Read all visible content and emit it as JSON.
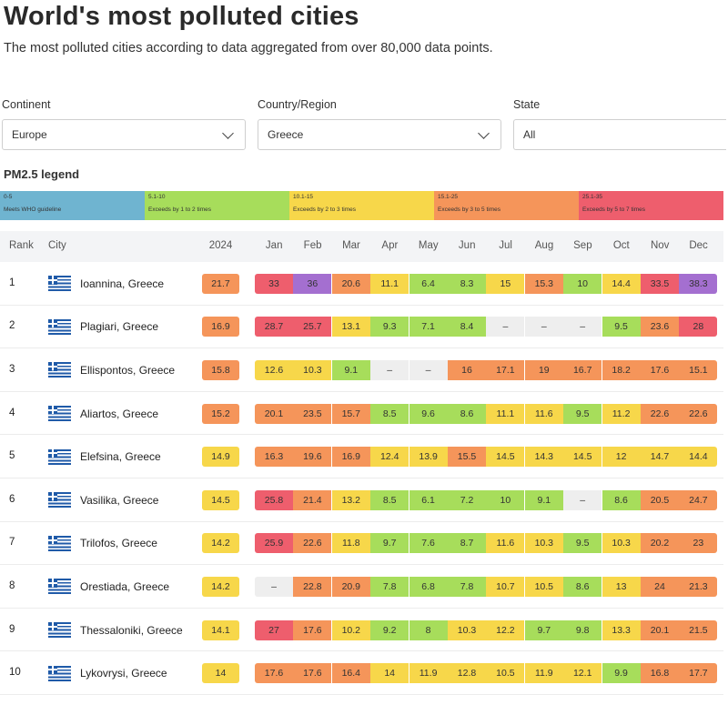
{
  "page": {
    "title": "World's most polluted cities",
    "subtitle": "The most polluted cities according to data aggregated from over 80,000 data points."
  },
  "filters": [
    {
      "label": "Continent",
      "value": "Europe"
    },
    {
      "label": "Country/Region",
      "value": "Greece"
    },
    {
      "label": "State",
      "value": "All"
    }
  ],
  "legend": {
    "title": "PM2.5 legend",
    "items": [
      {
        "range": "0-5",
        "desc": "Meets WHO guideline",
        "color": "#6fb4d0"
      },
      {
        "range": "5.1-10",
        "desc": "Exceeds by 1 to 2 times",
        "color": "#a7dd5b"
      },
      {
        "range": "10.1-15",
        "desc": "Exceeds by 2 to 3 times",
        "color": "#f7d74a"
      },
      {
        "range": "15.1-25",
        "desc": "Exceeds by 3 to 5 times",
        "color": "#f5955a"
      },
      {
        "range": "25.1-35",
        "desc": "Exceeds by 5 to 7 times",
        "color": "#ee5e6d"
      }
    ]
  },
  "colors": {
    "l1": "#6fb4d0",
    "l2": "#a7dd5b",
    "l3": "#f7d74a",
    "l4": "#f5955a",
    "l5": "#ee5e6d",
    "l6": "#a46fd0",
    "none": "#eeeeee"
  },
  "table": {
    "headers": {
      "rank": "Rank",
      "city": "City",
      "year": "2024"
    },
    "months": [
      "Jan",
      "Feb",
      "Mar",
      "Apr",
      "May",
      "Jun",
      "Jul",
      "Aug",
      "Sep",
      "Oct",
      "Nov",
      "Dec"
    ],
    "rows": [
      {
        "rank": "1",
        "city": "Ioannina, Greece",
        "year": "21.7",
        "months": [
          "33",
          "36",
          "20.6",
          "11.1",
          "6.4",
          "8.3",
          "15",
          "15.3",
          "10",
          "14.4",
          "33.5",
          "38.3"
        ]
      },
      {
        "rank": "2",
        "city": "Plagiari, Greece",
        "year": "16.9",
        "months": [
          "28.7",
          "25.7",
          "13.1",
          "9.3",
          "7.1",
          "8.4",
          "–",
          "–",
          "–",
          "9.5",
          "23.6",
          "28"
        ]
      },
      {
        "rank": "3",
        "city": "Ellispontos, Greece",
        "year": "15.8",
        "months": [
          "12.6",
          "10.3",
          "9.1",
          "–",
          "–",
          "16",
          "17.1",
          "19",
          "16.7",
          "18.2",
          "17.6",
          "15.1"
        ]
      },
      {
        "rank": "4",
        "city": "Aliartos, Greece",
        "year": "15.2",
        "months": [
          "20.1",
          "23.5",
          "15.7",
          "8.5",
          "9.6",
          "8.6",
          "11.1",
          "11.6",
          "9.5",
          "11.2",
          "22.6",
          "22.6"
        ]
      },
      {
        "rank": "5",
        "city": "Elefsina, Greece",
        "year": "14.9",
        "months": [
          "16.3",
          "19.6",
          "16.9",
          "12.4",
          "13.9",
          "15.5",
          "14.5",
          "14.3",
          "14.5",
          "12",
          "14.7",
          "14.4"
        ]
      },
      {
        "rank": "6",
        "city": "Vasilika, Greece",
        "year": "14.5",
        "months": [
          "25.8",
          "21.4",
          "13.2",
          "8.5",
          "6.1",
          "7.2",
          "10",
          "9.1",
          "–",
          "8.6",
          "20.5",
          "24.7"
        ]
      },
      {
        "rank": "7",
        "city": "Trilofos, Greece",
        "year": "14.2",
        "months": [
          "25.9",
          "22.6",
          "11.8",
          "9.7",
          "7.6",
          "8.7",
          "11.6",
          "10.3",
          "9.5",
          "10.3",
          "20.2",
          "23"
        ]
      },
      {
        "rank": "8",
        "city": "Orestiada, Greece",
        "year": "14.2",
        "months": [
          "–",
          "22.8",
          "20.9",
          "7.8",
          "6.8",
          "7.8",
          "10.7",
          "10.5",
          "8.6",
          "13",
          "24",
          "21.3"
        ]
      },
      {
        "rank": "9",
        "city": "Thessaloniki, Greece",
        "year": "14.1",
        "months": [
          "27",
          "17.6",
          "10.2",
          "9.2",
          "8",
          "10.3",
          "12.2",
          "9.7",
          "9.8",
          "13.3",
          "20.1",
          "21.5"
        ]
      },
      {
        "rank": "10",
        "city": "Lykovrysi, Greece",
        "year": "14",
        "months": [
          "17.6",
          "17.6",
          "16.4",
          "14",
          "11.9",
          "12.8",
          "10.5",
          "11.9",
          "12.1",
          "9.9",
          "16.8",
          "17.7"
        ]
      }
    ]
  }
}
